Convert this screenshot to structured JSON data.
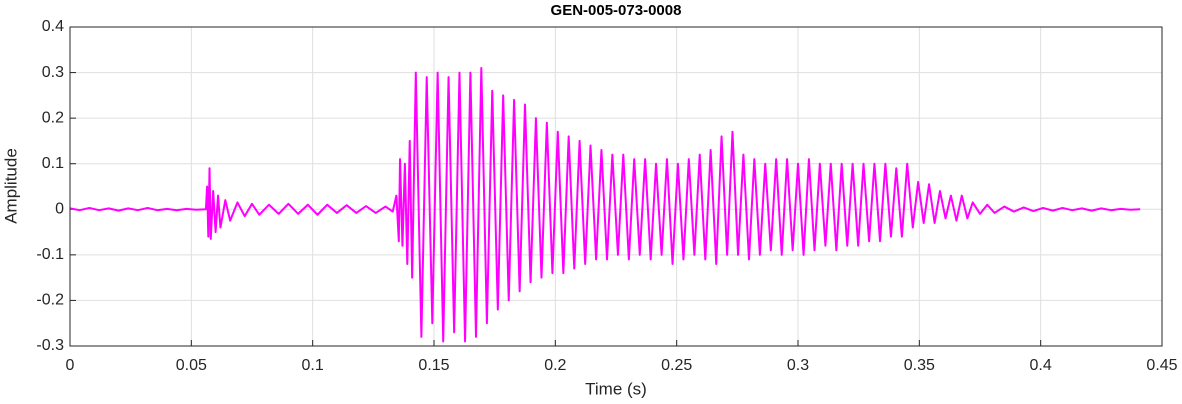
{
  "chart_data": {
    "type": "line",
    "title": "GEN-005-073-0008",
    "xlabel": "Time (s)",
    "ylabel": "Amplitude",
    "color": "#ff00ff",
    "grid": true,
    "xlim": [
      0,
      0.45
    ],
    "ylim": [
      -0.3,
      0.4
    ],
    "xticks": [
      0,
      0.05,
      0.1,
      0.15,
      0.2,
      0.25,
      0.3,
      0.35,
      0.4,
      0.45
    ],
    "yticks": [
      -0.3,
      -0.2,
      -0.1,
      0,
      0.1,
      0.2,
      0.3,
      0.4
    ],
    "x": [
      0,
      0.004,
      0.008,
      0.012,
      0.016,
      0.02,
      0.024,
      0.028,
      0.032,
      0.036,
      0.04,
      0.044,
      0.048,
      0.052,
      0.056,
      0.0565,
      0.057,
      0.0575,
      0.058,
      0.059,
      0.06,
      0.061,
      0.062,
      0.064,
      0.066,
      0.069,
      0.072,
      0.075,
      0.078,
      0.082,
      0.086,
      0.09,
      0.094,
      0.098,
      0.102,
      0.106,
      0.11,
      0.114,
      0.118,
      0.122,
      0.126,
      0.13,
      0.133,
      0.1345,
      0.1355,
      0.136,
      0.137,
      0.138,
      0.139,
      0.14,
      0.141,
      0.1425,
      0.1448,
      0.147,
      0.1493,
      0.1515,
      0.1538,
      0.156,
      0.1583,
      0.1605,
      0.1628,
      0.165,
      0.1673,
      0.1695,
      0.1718,
      0.174,
      0.1763,
      0.1785,
      0.1808,
      0.183,
      0.1853,
      0.1875,
      0.1898,
      0.192,
      0.1943,
      0.1965,
      0.1988,
      0.201,
      0.2033,
      0.2055,
      0.2078,
      0.21,
      0.2123,
      0.2145,
      0.2168,
      0.219,
      0.2213,
      0.2235,
      0.2258,
      0.228,
      0.2303,
      0.2325,
      0.2348,
      0.237,
      0.2393,
      0.2415,
      0.2438,
      0.246,
      0.2483,
      0.2505,
      0.2528,
      0.255,
      0.2573,
      0.2595,
      0.2618,
      0.264,
      0.2663,
      0.2685,
      0.2708,
      0.273,
      0.2753,
      0.2775,
      0.2798,
      0.282,
      0.2843,
      0.2865,
      0.2888,
      0.291,
      0.2933,
      0.2955,
      0.2978,
      0.3,
      0.3023,
      0.3045,
      0.3068,
      0.309,
      0.3113,
      0.3135,
      0.3158,
      0.318,
      0.3203,
      0.3225,
      0.3248,
      0.327,
      0.3293,
      0.3315,
      0.3338,
      0.336,
      0.3383,
      0.3405,
      0.3428,
      0.345,
      0.3473,
      0.3495,
      0.3518,
      0.354,
      0.3563,
      0.3585,
      0.3608,
      0.363,
      0.3653,
      0.3675,
      0.3698,
      0.372,
      0.375,
      0.378,
      0.381,
      0.385,
      0.389,
      0.393,
      0.397,
      0.401,
      0.405,
      0.409,
      0.413,
      0.417,
      0.421,
      0.425,
      0.429,
      0.433,
      0.437,
      0.441
    ],
    "values": [
      0.002,
      -0.002,
      0.003,
      -0.002,
      0.002,
      -0.003,
      0.002,
      -0.002,
      0.003,
      -0.002,
      0.001,
      -0.002,
      0.001,
      -0.001,
      0,
      0.05,
      -0.06,
      0.09,
      -0.065,
      0.04,
      -0.05,
      0.03,
      -0.04,
      0.02,
      -0.025,
      0.015,
      -0.015,
      0.012,
      -0.012,
      0.01,
      -0.01,
      0.012,
      -0.01,
      0.01,
      -0.012,
      0.01,
      -0.008,
      0.009,
      -0.008,
      0.007,
      -0.008,
      0.006,
      -0.005,
      0.03,
      -0.07,
      0.11,
      -0.08,
      0.1,
      -0.12,
      0.15,
      -0.15,
      0.3,
      -0.28,
      0.29,
      -0.25,
      0.3,
      -0.29,
      0.29,
      -0.27,
      0.3,
      -0.29,
      0.3,
      -0.28,
      0.31,
      -0.25,
      0.26,
      -0.22,
      0.25,
      -0.2,
      0.24,
      -0.18,
      0.23,
      -0.16,
      0.2,
      -0.15,
      0.19,
      -0.14,
      0.17,
      -0.14,
      0.16,
      -0.13,
      0.15,
      -0.12,
      0.14,
      -0.11,
      0.13,
      -0.11,
      0.12,
      -0.1,
      0.12,
      -0.11,
      0.11,
      -0.1,
      0.11,
      -0.11,
      0.1,
      -0.1,
      0.11,
      -0.12,
      0.1,
      -0.11,
      0.11,
      -0.1,
      0.12,
      -0.11,
      0.13,
      -0.12,
      0.16,
      -0.1,
      0.17,
      -0.1,
      0.12,
      -0.11,
      0.11,
      -0.1,
      0.1,
      -0.09,
      0.11,
      -0.1,
      0.11,
      -0.09,
      0.1,
      -0.1,
      0.11,
      -0.09,
      0.1,
      -0.08,
      0.1,
      -0.09,
      0.1,
      -0.08,
      0.1,
      -0.08,
      0.1,
      -0.07,
      0.1,
      -0.07,
      0.1,
      -0.06,
      0.09,
      -0.06,
      0.1,
      -0.04,
      0.06,
      -0.03,
      0.055,
      -0.03,
      0.04,
      -0.02,
      0.03,
      -0.025,
      0.03,
      -0.02,
      0.015,
      -0.01,
      0.01,
      -0.008,
      0.006,
      -0.005,
      0.004,
      -0.004,
      0.003,
      -0.003,
      0.003,
      -0.002,
      0.002,
      -0.003,
      0.002,
      -0.002,
      0.001,
      -0.001,
      0
    ]
  }
}
